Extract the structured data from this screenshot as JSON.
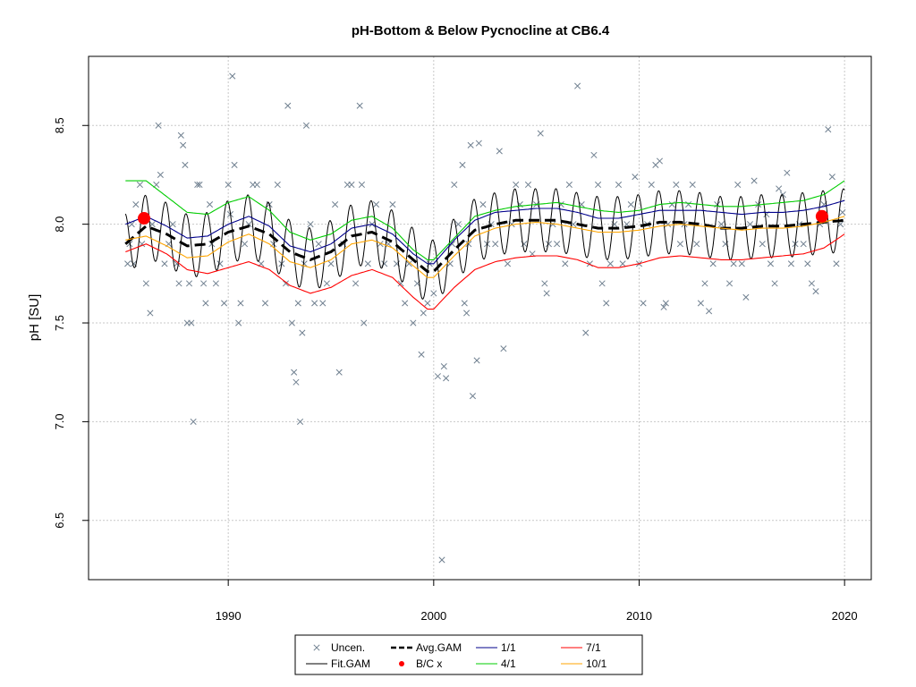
{
  "chart_data": {
    "type": "line",
    "title": "pH-Bottom & Below Pycnocline at CB6.4",
    "xlabel": "",
    "ylabel": "pH [SU]",
    "xlim": [
      1983.2,
      2021.3
    ],
    "ylim": [
      6.2,
      8.85
    ],
    "x_ticks": [
      1990,
      2000,
      2010,
      2020
    ],
    "y_ticks": [
      6.5,
      7.0,
      7.5,
      8.0,
      8.5
    ],
    "grid": true,
    "legend_position": "bottom",
    "legend": [
      {
        "label": "Uncen.",
        "kind": "cross",
        "color": "#708090"
      },
      {
        "label": "Avg.GAM",
        "kind": "dashed",
        "color": "#000000"
      },
      {
        "label": "1/1",
        "kind": "line",
        "color": "#00008b"
      },
      {
        "label": "7/1",
        "kind": "line",
        "color": "#ff0000"
      },
      {
        "label": "Fit.GAM",
        "kind": "line",
        "color": "#000000"
      },
      {
        "label": "B/C x",
        "kind": "dot",
        "color": "#ff0000"
      },
      {
        "label": "4/1",
        "kind": "line",
        "color": "#00cc00"
      },
      {
        "label": "10/1",
        "kind": "line",
        "color": "#ffa500"
      }
    ],
    "series": [
      {
        "name": "Avg.GAM",
        "color": "#000000",
        "style": "dashed",
        "x": [
          1985,
          1986,
          1987,
          1988,
          1989,
          1990,
          1991,
          1992,
          1993,
          1994,
          1995,
          1996,
          1997,
          1998,
          1999,
          1999.7,
          2000,
          2001,
          2002,
          2003,
          2004,
          2005,
          2006,
          2007,
          2008,
          2009,
          2010,
          2011,
          2012,
          2013,
          2014,
          2015,
          2016,
          2017,
          2018,
          2019,
          2020
        ],
        "y": [
          7.9,
          7.99,
          7.95,
          7.89,
          7.9,
          7.96,
          7.99,
          7.95,
          7.86,
          7.82,
          7.86,
          7.94,
          7.96,
          7.91,
          7.82,
          7.76,
          7.76,
          7.87,
          7.97,
          8.0,
          8.02,
          8.02,
          8.02,
          8.0,
          7.98,
          7.98,
          7.99,
          8.01,
          8.01,
          8.0,
          7.98,
          7.98,
          7.99,
          7.99,
          8.0,
          8.01,
          8.02
        ]
      },
      {
        "name": "1/1",
        "color": "#00008b",
        "style": "solid",
        "x": [
          1985,
          1986,
          1987,
          1988,
          1989,
          1990,
          1991,
          1992,
          1993,
          1994,
          1995,
          1996,
          1997,
          1998,
          1999,
          1999.7,
          2000,
          2001,
          2002,
          2003,
          2004,
          2005,
          2006,
          2007,
          2008,
          2009,
          2010,
          2011,
          2012,
          2013,
          2014,
          2015,
          2016,
          2017,
          2018,
          2019,
          2020
        ],
        "y": [
          8.0,
          8.04,
          7.99,
          7.93,
          7.94,
          8.0,
          8.04,
          7.99,
          7.89,
          7.86,
          7.9,
          7.98,
          8.0,
          7.95,
          7.85,
          7.8,
          7.8,
          7.92,
          8.02,
          8.06,
          8.07,
          8.08,
          8.08,
          8.06,
          8.03,
          8.03,
          8.05,
          8.07,
          8.07,
          8.07,
          8.06,
          8.05,
          8.06,
          8.06,
          8.07,
          8.09,
          8.12
        ]
      },
      {
        "name": "4/1",
        "color": "#00cc00",
        "style": "solid",
        "x": [
          1985,
          1986,
          1987,
          1988,
          1989,
          1990,
          1991,
          1992,
          1993,
          1994,
          1995,
          1996,
          1997,
          1998,
          1999,
          1999.7,
          2000,
          2001,
          2002,
          2003,
          2004,
          2005,
          2006,
          2007,
          2008,
          2009,
          2010,
          2011,
          2012,
          2013,
          2014,
          2015,
          2016,
          2017,
          2018,
          2019,
          2020
        ],
        "y": [
          8.22,
          8.22,
          8.14,
          8.06,
          8.05,
          8.11,
          8.14,
          8.07,
          7.96,
          7.92,
          7.95,
          8.02,
          8.04,
          7.98,
          7.87,
          7.82,
          7.82,
          7.93,
          8.04,
          8.07,
          8.09,
          8.1,
          8.11,
          8.09,
          8.07,
          8.06,
          8.07,
          8.1,
          8.11,
          8.1,
          8.09,
          8.09,
          8.1,
          8.11,
          8.12,
          8.15,
          8.22
        ]
      },
      {
        "name": "7/1",
        "color": "#ff0000",
        "style": "solid",
        "x": [
          1985,
          1986,
          1987,
          1988,
          1989,
          1990,
          1991,
          1992,
          1993,
          1994,
          1995,
          1996,
          1997,
          1998,
          1999,
          1999.7,
          2000,
          2001,
          2002,
          2003,
          2004,
          2005,
          2006,
          2007,
          2008,
          2009,
          2010,
          2011,
          2012,
          2013,
          2014,
          2015,
          2016,
          2017,
          2018,
          2019,
          2020
        ],
        "y": [
          7.86,
          7.9,
          7.85,
          7.77,
          7.75,
          7.78,
          7.81,
          7.77,
          7.69,
          7.65,
          7.68,
          7.74,
          7.77,
          7.73,
          7.63,
          7.57,
          7.57,
          7.68,
          7.77,
          7.81,
          7.83,
          7.84,
          7.84,
          7.82,
          7.78,
          7.78,
          7.8,
          7.83,
          7.84,
          7.83,
          7.82,
          7.82,
          7.83,
          7.84,
          7.85,
          7.88,
          7.95
        ]
      },
      {
        "name": "10/1",
        "color": "#ffa500",
        "style": "solid",
        "x": [
          1985,
          1986,
          1987,
          1988,
          1989,
          1990,
          1991,
          1992,
          1993,
          1994,
          1995,
          1996,
          1997,
          1998,
          1999,
          1999.7,
          2000,
          2001,
          2002,
          2003,
          2004,
          2005,
          2006,
          2007,
          2008,
          2009,
          2010,
          2011,
          2012,
          2013,
          2014,
          2015,
          2016,
          2017,
          2018,
          2019,
          2020
        ],
        "y": [
          7.92,
          7.94,
          7.89,
          7.83,
          7.84,
          7.91,
          7.95,
          7.9,
          7.81,
          7.78,
          7.82,
          7.9,
          7.92,
          7.88,
          7.79,
          7.73,
          7.73,
          7.84,
          7.94,
          7.98,
          8.0,
          8.01,
          8.0,
          7.98,
          7.96,
          7.96,
          7.97,
          7.99,
          8.0,
          7.99,
          7.98,
          7.97,
          7.98,
          7.98,
          7.99,
          8.01,
          8.04
        ]
      }
    ],
    "fit_gam": {
      "name": "Fit.GAM",
      "color": "#000000",
      "x_start": 1985,
      "x_end": 2020,
      "cycles_per_year": 1,
      "amplitude": 0.16
    },
    "bc_points": [
      {
        "x": 1985.9,
        "y": 8.03
      },
      {
        "x": 2018.9,
        "y": 8.04
      }
    ],
    "observations": [
      [
        1985.1,
        7.8
      ],
      [
        1985.2,
        7.9
      ],
      [
        1985.3,
        8.0
      ],
      [
        1985.4,
        7.8
      ],
      [
        1985.5,
        8.1
      ],
      [
        1985.7,
        8.2
      ],
      [
        1985.8,
        7.9
      ],
      [
        1986.0,
        7.7
      ],
      [
        1986.2,
        7.55
      ],
      [
        1986.3,
        8.0
      ],
      [
        1986.5,
        8.2
      ],
      [
        1986.6,
        8.5
      ],
      [
        1986.7,
        8.25
      ],
      [
        1986.9,
        7.8
      ],
      [
        1987.1,
        7.9
      ],
      [
        1987.3,
        8.0
      ],
      [
        1987.5,
        7.8
      ],
      [
        1987.6,
        7.7
      ],
      [
        1987.7,
        8.45
      ],
      [
        1987.8,
        8.4
      ],
      [
        1987.9,
        8.3
      ],
      [
        1988.0,
        7.5
      ],
      [
        1988.1,
        7.7
      ],
      [
        1988.2,
        7.5
      ],
      [
        1988.3,
        7.0
      ],
      [
        1988.5,
        8.2
      ],
      [
        1988.6,
        8.2
      ],
      [
        1988.8,
        7.7
      ],
      [
        1988.9,
        7.6
      ],
      [
        1989.1,
        8.1
      ],
      [
        1989.2,
        7.9
      ],
      [
        1989.4,
        7.7
      ],
      [
        1989.6,
        7.8
      ],
      [
        1989.8,
        7.6
      ],
      [
        1990.0,
        8.2
      ],
      [
        1990.1,
        8.05
      ],
      [
        1990.2,
        8.75
      ],
      [
        1990.3,
        8.3
      ],
      [
        1990.5,
        7.5
      ],
      [
        1990.6,
        7.6
      ],
      [
        1990.8,
        7.9
      ],
      [
        1991.0,
        8.0
      ],
      [
        1991.2,
        8.2
      ],
      [
        1991.4,
        8.2
      ],
      [
        1991.6,
        7.8
      ],
      [
        1991.8,
        7.6
      ],
      [
        1992.0,
        8.1
      ],
      [
        1992.2,
        7.9
      ],
      [
        1992.4,
        8.2
      ],
      [
        1992.6,
        7.8
      ],
      [
        1992.8,
        7.7
      ],
      [
        1992.9,
        8.6
      ],
      [
        1993.1,
        7.5
      ],
      [
        1993.2,
        7.25
      ],
      [
        1993.3,
        7.2
      ],
      [
        1993.4,
        7.6
      ],
      [
        1993.5,
        7.0
      ],
      [
        1993.6,
        7.45
      ],
      [
        1993.7,
        7.8
      ],
      [
        1993.8,
        8.5
      ],
      [
        1994.0,
        8.0
      ],
      [
        1994.2,
        7.6
      ],
      [
        1994.4,
        7.9
      ],
      [
        1994.6,
        7.6
      ],
      [
        1994.8,
        7.7
      ],
      [
        1995.0,
        7.8
      ],
      [
        1995.2,
        8.1
      ],
      [
        1995.4,
        7.25
      ],
      [
        1995.6,
        7.9
      ],
      [
        1995.8,
        8.2
      ],
      [
        1996.0,
        8.2
      ],
      [
        1996.2,
        7.7
      ],
      [
        1996.4,
        8.6
      ],
      [
        1996.5,
        8.2
      ],
      [
        1996.6,
        7.5
      ],
      [
        1996.8,
        7.8
      ],
      [
        1997.0,
        8.0
      ],
      [
        1997.2,
        8.1
      ],
      [
        1997.4,
        7.9
      ],
      [
        1997.6,
        7.8
      ],
      [
        1997.8,
        7.9
      ],
      [
        1998.0,
        8.1
      ],
      [
        1998.2,
        7.8
      ],
      [
        1998.4,
        7.7
      ],
      [
        1998.6,
        7.6
      ],
      [
        1998.8,
        7.8
      ],
      [
        1999.0,
        7.5
      ],
      [
        1999.2,
        7.7
      ],
      [
        1999.4,
        7.34
      ],
      [
        1999.5,
        7.55
      ],
      [
        1999.7,
        7.6
      ],
      [
        1999.8,
        7.8
      ],
      [
        2000.0,
        7.65
      ],
      [
        2000.2,
        7.23
      ],
      [
        2000.4,
        6.3
      ],
      [
        2000.5,
        7.28
      ],
      [
        2000.6,
        7.22
      ],
      [
        2000.8,
        7.8
      ],
      [
        2000.9,
        7.9
      ],
      [
        2001.0,
        8.2
      ],
      [
        2001.2,
        8.0
      ],
      [
        2001.4,
        8.3
      ],
      [
        2001.5,
        7.6
      ],
      [
        2001.6,
        7.55
      ],
      [
        2001.7,
        7.9
      ],
      [
        2001.8,
        8.4
      ],
      [
        2001.9,
        7.13
      ],
      [
        2002.1,
        7.31
      ],
      [
        2002.2,
        8.41
      ],
      [
        2002.4,
        8.1
      ],
      [
        2002.6,
        7.9
      ],
      [
        2002.8,
        8.0
      ],
      [
        2003.0,
        7.9
      ],
      [
        2003.2,
        8.37
      ],
      [
        2003.4,
        7.37
      ],
      [
        2003.6,
        7.8
      ],
      [
        2003.8,
        8.0
      ],
      [
        2004.0,
        8.2
      ],
      [
        2004.2,
        8.1
      ],
      [
        2004.4,
        7.9
      ],
      [
        2004.6,
        8.2
      ],
      [
        2004.8,
        7.85
      ],
      [
        2005.0,
        8.1
      ],
      [
        2005.2,
        8.46
      ],
      [
        2005.4,
        7.7
      ],
      [
        2005.5,
        7.65
      ],
      [
        2005.6,
        7.9
      ],
      [
        2005.8,
        8.0
      ],
      [
        2006.0,
        7.9
      ],
      [
        2006.2,
        8.1
      ],
      [
        2006.4,
        7.8
      ],
      [
        2006.6,
        8.2
      ],
      [
        2006.8,
        8.0
      ],
      [
        2007.0,
        8.7
      ],
      [
        2007.2,
        8.1
      ],
      [
        2007.4,
        7.45
      ],
      [
        2007.6,
        7.8
      ],
      [
        2007.8,
        8.35
      ],
      [
        2008.0,
        8.2
      ],
      [
        2008.2,
        7.7
      ],
      [
        2008.4,
        7.6
      ],
      [
        2008.6,
        7.8
      ],
      [
        2008.8,
        8.0
      ],
      [
        2009.0,
        8.2
      ],
      [
        2009.2,
        7.8
      ],
      [
        2009.4,
        8.0
      ],
      [
        2009.6,
        8.1
      ],
      [
        2009.8,
        8.24
      ],
      [
        2010.0,
        7.8
      ],
      [
        2010.2,
        7.6
      ],
      [
        2010.4,
        8.0
      ],
      [
        2010.6,
        8.2
      ],
      [
        2010.8,
        8.3
      ],
      [
        2011.0,
        8.32
      ],
      [
        2011.2,
        7.58
      ],
      [
        2011.3,
        7.6
      ],
      [
        2011.4,
        8.0
      ],
      [
        2011.6,
        8.1
      ],
      [
        2011.8,
        8.2
      ],
      [
        2012.0,
        7.9
      ],
      [
        2012.2,
        8.0
      ],
      [
        2012.4,
        8.1
      ],
      [
        2012.6,
        8.2
      ],
      [
        2012.8,
        7.9
      ],
      [
        2013.0,
        7.6
      ],
      [
        2013.2,
        7.7
      ],
      [
        2013.4,
        7.56
      ],
      [
        2013.6,
        7.8
      ],
      [
        2013.8,
        8.1
      ],
      [
        2014.0,
        8.0
      ],
      [
        2014.2,
        7.9
      ],
      [
        2014.4,
        7.7
      ],
      [
        2014.6,
        7.8
      ],
      [
        2014.8,
        8.2
      ],
      [
        2015.0,
        7.8
      ],
      [
        2015.2,
        7.63
      ],
      [
        2015.4,
        8.0
      ],
      [
        2015.6,
        8.22
      ],
      [
        2015.8,
        8.1
      ],
      [
        2016.0,
        7.9
      ],
      [
        2016.2,
        8.05
      ],
      [
        2016.4,
        7.8
      ],
      [
        2016.6,
        7.7
      ],
      [
        2016.8,
        8.18
      ],
      [
        2017.0,
        8.15
      ],
      [
        2017.2,
        8.26
      ],
      [
        2017.4,
        7.8
      ],
      [
        2017.6,
        7.9
      ],
      [
        2017.8,
        8.0
      ],
      [
        2018.0,
        7.9
      ],
      [
        2018.2,
        7.8
      ],
      [
        2018.4,
        7.7
      ],
      [
        2018.6,
        7.66
      ],
      [
        2018.8,
        8.0
      ],
      [
        2019.0,
        8.1
      ],
      [
        2019.2,
        8.48
      ],
      [
        2019.4,
        8.24
      ],
      [
        2019.6,
        7.8
      ],
      [
        2019.8,
        8.0
      ],
      [
        2019.9,
        8.06
      ]
    ]
  }
}
